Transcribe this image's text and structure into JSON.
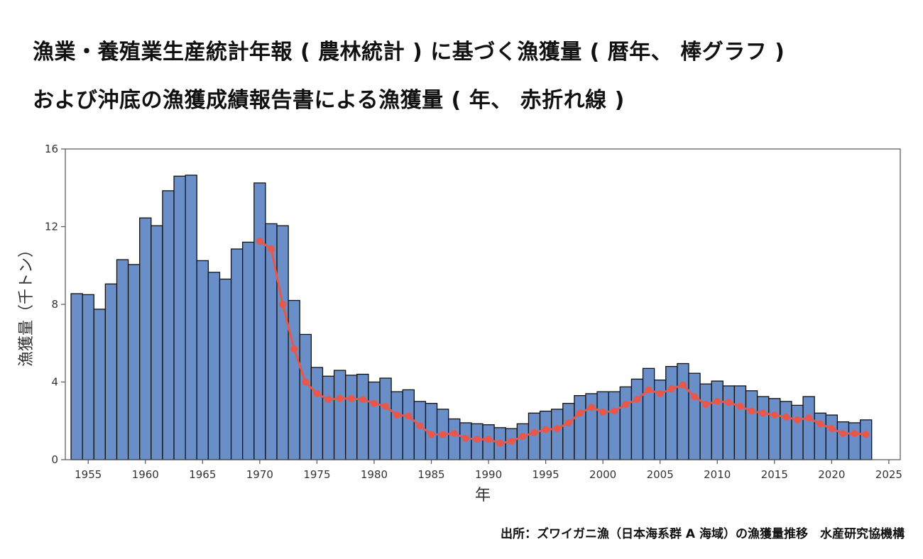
{
  "title_line1": "漁業・養殖業生産統計年報 ( 農林統計 ) に基づく漁獲量 ( 暦年、 棒グラフ )",
  "title_line2": "および沖底の漁獲成績報告書による漁獲量 ( 年、 赤折れ線 )",
  "source": "出所：ズワイガニ漁（日本海系群 A 海域）の漁獲量推移　水産研究協機構",
  "colors": {
    "bar": "#6a8fc8",
    "bar_edge": "#111111",
    "line": "#e8574a"
  },
  "chart_data": {
    "type": "bar",
    "xlabel": "年",
    "ylabel": "漁獲量（千トン）",
    "xlim": [
      1953,
      2026
    ],
    "ylim": [
      0,
      16
    ],
    "yticks": [
      0,
      4,
      8,
      12,
      16
    ],
    "xticks": [
      1955,
      1960,
      1965,
      1970,
      1975,
      1980,
      1985,
      1990,
      1995,
      2000,
      2005,
      2010,
      2015,
      2020,
      2025
    ],
    "grid": false,
    "series": [
      {
        "kind": "bar",
        "x": [
          1954,
          1955,
          1956,
          1957,
          1958,
          1959,
          1960,
          1961,
          1962,
          1963,
          1964,
          1965,
          1966,
          1967,
          1968,
          1969,
          1970,
          1971,
          1972,
          1973,
          1974,
          1975,
          1976,
          1977,
          1978,
          1979,
          1980,
          1981,
          1982,
          1983,
          1984,
          1985,
          1986,
          1987,
          1988,
          1989,
          1990,
          1991,
          1992,
          1993,
          1994,
          1995,
          1996,
          1997,
          1998,
          1999,
          2000,
          2001,
          2002,
          2003,
          2004,
          2005,
          2006,
          2007,
          2008,
          2009,
          2010,
          2011,
          2012,
          2013,
          2014,
          2015,
          2016,
          2017,
          2018,
          2019,
          2020,
          2021,
          2022,
          2023
        ],
        "values": [
          8.55,
          8.5,
          7.75,
          9.05,
          10.3,
          10.05,
          12.45,
          12.05,
          13.85,
          14.6,
          14.65,
          10.25,
          9.65,
          9.3,
          10.85,
          11.2,
          14.25,
          12.15,
          12.05,
          8.2,
          6.45,
          4.75,
          4.3,
          4.6,
          4.35,
          4.4,
          4.0,
          4.2,
          3.5,
          3.6,
          3.0,
          2.9,
          2.6,
          2.1,
          1.9,
          1.85,
          1.8,
          1.65,
          1.6,
          1.85,
          2.4,
          2.5,
          2.6,
          2.9,
          3.3,
          3.4,
          3.5,
          3.5,
          3.75,
          4.15,
          4.7,
          4.1,
          4.8,
          4.95,
          4.45,
          3.9,
          4.05,
          3.8,
          3.8,
          3.55,
          3.25,
          3.15,
          3.0,
          2.8,
          3.25,
          2.4,
          2.3,
          1.95,
          1.9,
          2.05
        ]
      },
      {
        "kind": "line",
        "x": [
          1970,
          1971,
          1972,
          1973,
          1974,
          1975,
          1976,
          1977,
          1978,
          1979,
          1980,
          1981,
          1982,
          1983,
          1984,
          1985,
          1986,
          1987,
          1988,
          1989,
          1990,
          1991,
          1992,
          1993,
          1994,
          1995,
          1996,
          1997,
          1998,
          1999,
          2000,
          2001,
          2002,
          2003,
          2004,
          2005,
          2006,
          2007,
          2008,
          2009,
          2010,
          2011,
          2012,
          2013,
          2014,
          2015,
          2016,
          2017,
          2018,
          2019,
          2020,
          2021,
          2022,
          2023
        ],
        "values": [
          11.25,
          10.85,
          8.0,
          5.7,
          4.0,
          3.4,
          3.1,
          3.15,
          3.15,
          3.1,
          2.9,
          2.75,
          2.3,
          2.25,
          1.75,
          1.3,
          1.3,
          1.35,
          1.1,
          1.05,
          1.05,
          0.85,
          0.95,
          1.2,
          1.4,
          1.55,
          1.6,
          1.9,
          2.4,
          2.7,
          2.45,
          2.5,
          2.85,
          3.1,
          3.6,
          3.4,
          3.65,
          3.85,
          3.25,
          2.85,
          3.0,
          2.95,
          2.75,
          2.5,
          2.4,
          2.3,
          2.2,
          2.05,
          2.15,
          1.85,
          1.6,
          1.35,
          1.35,
          1.3
        ]
      }
    ]
  }
}
